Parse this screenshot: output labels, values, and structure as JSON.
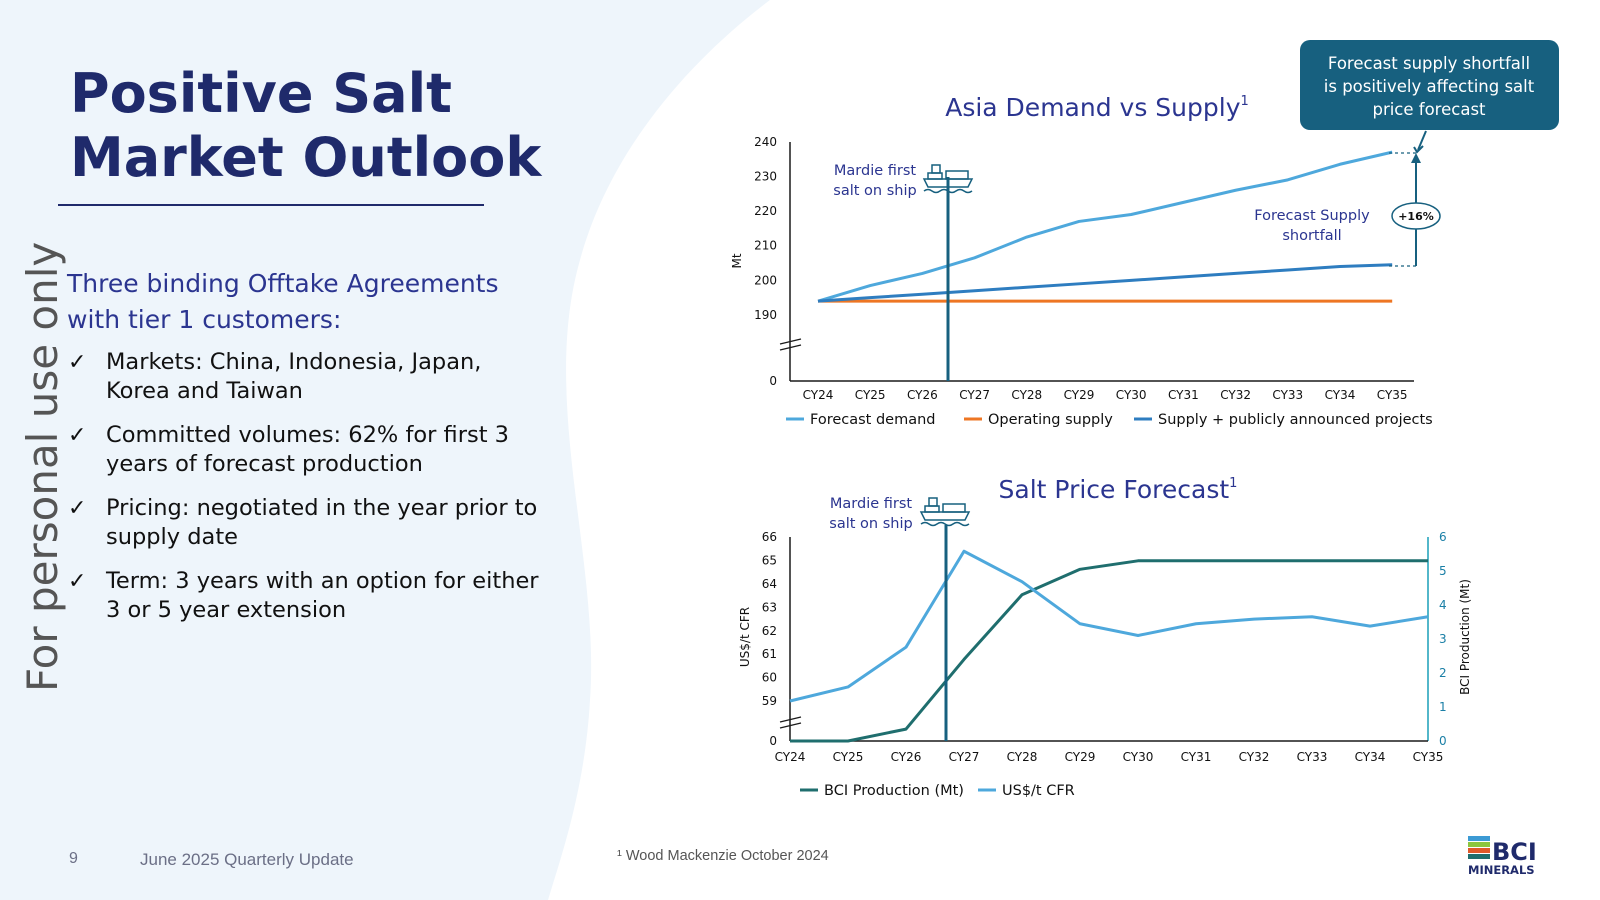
{
  "slide": {
    "title_line1": "Positive Salt",
    "title_line2": "Market Outlook",
    "watermark": "For personal use only",
    "intro_line1": "Three binding Offtake Agreements",
    "intro_line2": "with tier 1 customers:",
    "bullets": [
      {
        "line1": "Markets: China, Indonesia, Japan,",
        "line2": "Korea and Taiwan"
      },
      {
        "line1": "Committed volumes: 62% for first 3",
        "line2": "years of forecast production"
      },
      {
        "line1": "Pricing: negotiated in the year prior to",
        "line2": "supply date"
      },
      {
        "line1": "Term: 3 years with an option for either",
        "line2": "3 or 5 year extension"
      }
    ],
    "tick": "✓",
    "page_number": "9",
    "footer_title": "June 2025 Quarterly Update",
    "footnote": "¹ Wood Mackenzie October 2024",
    "logo_text1": "BCI",
    "logo_text2": "MINERALS"
  },
  "callout": {
    "line1": "Forecast supply shortfall",
    "line2": "is positively affecting salt",
    "line3": "price forecast"
  },
  "chart_data": [
    {
      "type": "line",
      "title": "Asia Demand vs Supply",
      "title_sup": "1",
      "ylabel": "Mt",
      "y_ticks": [
        "0",
        "190",
        "200",
        "210",
        "220",
        "230",
        "240"
      ],
      "y_axis_break": true,
      "categories": [
        "CY24",
        "CY25",
        "CY26",
        "CY27",
        "CY28",
        "CY29",
        "CY30",
        "CY31",
        "CY32",
        "CY33",
        "CY34",
        "CY35"
      ],
      "series": [
        {
          "name": "Forecast demand",
          "color": "#4ea8dc",
          "values": [
            194,
            198.5,
            202,
            206.5,
            212.5,
            217,
            219,
            222.5,
            226,
            229,
            233.5,
            237
          ]
        },
        {
          "name": "Operating supply",
          "color": "#ee7623",
          "values": [
            194,
            194,
            194,
            194,
            194,
            194,
            194,
            194,
            194,
            194,
            194,
            194
          ]
        },
        {
          "name": "Supply + publicly announced projects",
          "color": "#2e7dc0",
          "values": [
            194,
            195,
            196,
            197,
            198,
            199,
            200,
            201,
            202,
            203,
            204,
            204.5
          ]
        }
      ],
      "marker_label_line1": "Mardie first",
      "marker_label_line2": "salt on ship",
      "annotation_line1": "Forecast Supply",
      "annotation_line2": "shortfall",
      "shortfall_badge": "+16%"
    },
    {
      "type": "line",
      "title": "Salt Price Forecast",
      "title_sup": "1",
      "ylabel": "US$/t CFR",
      "y2label": "BCI Production (Mt)",
      "y_ticks": [
        "0",
        "59",
        "60",
        "61",
        "62",
        "63",
        "64",
        "65",
        "66"
      ],
      "y2_ticks": [
        "0",
        "1",
        "2",
        "3",
        "4",
        "5",
        "6"
      ],
      "y_axis_break": true,
      "categories": [
        "CY24",
        "CY25",
        "CY26",
        "CY27",
        "CY28",
        "CY29",
        "CY30",
        "CY31",
        "CY32",
        "CY33",
        "CY34",
        "CY35"
      ],
      "series": [
        {
          "name": "BCI Production (Mt)",
          "axis": "right",
          "color": "#1f6e6e",
          "values": [
            0,
            0,
            0.35,
            2.4,
            4.3,
            5.05,
            5.3,
            5.3,
            5.3,
            5.3,
            5.3,
            5.3
          ]
        },
        {
          "name": "US$/t CFR",
          "axis": "left",
          "color": "#4ea8dc",
          "values": [
            59,
            59.6,
            61.3,
            65.4,
            64.1,
            62.3,
            61.8,
            62.3,
            62.5,
            62.6,
            62.2,
            62.6
          ]
        }
      ],
      "marker_label_line1": "Mardie first",
      "marker_label_line2": "salt on ship"
    }
  ]
}
